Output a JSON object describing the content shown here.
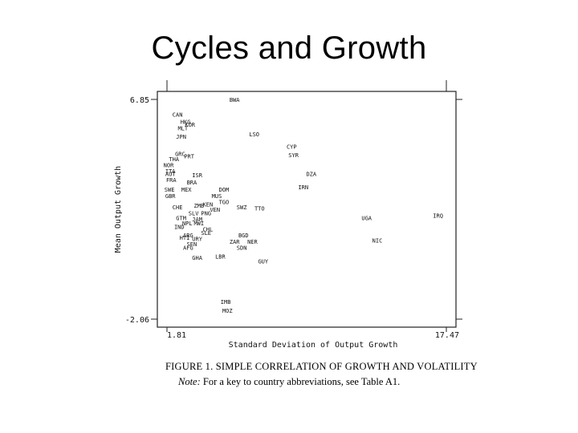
{
  "slide": {
    "title": "Cycles and Growth"
  },
  "caption": {
    "figure": "FIGURE 1. SIMPLE CORRELATION OF GROWTH AND VOLATILITY",
    "note_label": "Note:",
    "note_text": "For a key to country abbreviations, see Table A1."
  },
  "chart_data": {
    "type": "scatter",
    "xlabel": "Standard Deviation of Output Growth",
    "ylabel": "Mean Output Growth",
    "xlim": [
      1.81,
      17.47
    ],
    "ylim": [
      -2.06,
      6.85
    ],
    "x_ticks": [
      "1.81",
      "17.47"
    ],
    "y_ticks": [
      "6.85",
      "-2.06"
    ],
    "grid": false,
    "points": [
      {
        "label": "BWA",
        "x": 5.6,
        "y": 6.85
      },
      {
        "label": "CAN",
        "x": 2.4,
        "y": 6.25
      },
      {
        "label": "HKG",
        "x": 2.85,
        "y": 5.95
      },
      {
        "label": "KOR",
        "x": 3.1,
        "y": 5.85
      },
      {
        "label": "MLT",
        "x": 2.7,
        "y": 5.7
      },
      {
        "label": "JPN",
        "x": 2.6,
        "y": 5.35
      },
      {
        "label": "LSO",
        "x": 6.7,
        "y": 5.45
      },
      {
        "label": "CYP",
        "x": 8.8,
        "y": 4.95
      },
      {
        "label": "SYR",
        "x": 8.9,
        "y": 4.6
      },
      {
        "label": "GRC",
        "x": 2.55,
        "y": 4.65
      },
      {
        "label": "PRT",
        "x": 3.05,
        "y": 4.55
      },
      {
        "label": "NOR",
        "x": 1.9,
        "y": 4.2
      },
      {
        "label": "THA",
        "x": 2.2,
        "y": 4.45
      },
      {
        "label": "ITA",
        "x": 2.0,
        "y": 3.95
      },
      {
        "label": "AUT",
        "x": 2.0,
        "y": 3.85
      },
      {
        "label": "FRA",
        "x": 2.05,
        "y": 3.6
      },
      {
        "label": "ISR",
        "x": 3.5,
        "y": 3.8
      },
      {
        "label": "BRA",
        "x": 3.2,
        "y": 3.5
      },
      {
        "label": "SWE",
        "x": 1.95,
        "y": 3.2
      },
      {
        "label": "GBR",
        "x": 2.0,
        "y": 2.95
      },
      {
        "label": "MEX",
        "x": 2.9,
        "y": 3.2
      },
      {
        "label": "DZA",
        "x": 9.9,
        "y": 3.85
      },
      {
        "label": "IRN",
        "x": 9.45,
        "y": 3.3
      },
      {
        "label": "DOM",
        "x": 5.0,
        "y": 3.2
      },
      {
        "label": "MUS",
        "x": 4.6,
        "y": 2.95
      },
      {
        "label": "TGO",
        "x": 5.0,
        "y": 2.7
      },
      {
        "label": "CHE",
        "x": 2.4,
        "y": 2.5
      },
      {
        "label": "ZMB",
        "x": 3.6,
        "y": 2.55
      },
      {
        "label": "KEN",
        "x": 4.1,
        "y": 2.6
      },
      {
        "label": "SWZ",
        "x": 6.0,
        "y": 2.5
      },
      {
        "label": "TTO",
        "x": 7.0,
        "y": 2.45
      },
      {
        "label": "SLV",
        "x": 3.3,
        "y": 2.25
      },
      {
        "label": "PNG",
        "x": 4.0,
        "y": 2.25
      },
      {
        "label": "VEN",
        "x": 4.5,
        "y": 2.4
      },
      {
        "label": "GTM",
        "x": 2.6,
        "y": 2.05
      },
      {
        "label": "JAM",
        "x": 3.5,
        "y": 2.0
      },
      {
        "label": "NPL",
        "x": 2.95,
        "y": 1.85
      },
      {
        "label": "MWI",
        "x": 3.6,
        "y": 1.85
      },
      {
        "label": "IND",
        "x": 2.5,
        "y": 1.7
      },
      {
        "label": "CHL",
        "x": 4.1,
        "y": 1.6
      },
      {
        "label": "SLE",
        "x": 4.0,
        "y": 1.45
      },
      {
        "label": "ARG",
        "x": 3.0,
        "y": 1.35
      },
      {
        "label": "HTI",
        "x": 2.8,
        "y": 1.25
      },
      {
        "label": "URY",
        "x": 3.5,
        "y": 1.2
      },
      {
        "label": "BGD",
        "x": 6.1,
        "y": 1.35
      },
      {
        "label": "ZAR",
        "x": 5.6,
        "y": 1.1
      },
      {
        "label": "NER",
        "x": 6.6,
        "y": 1.1
      },
      {
        "label": "SEN",
        "x": 3.2,
        "y": 1.0
      },
      {
        "label": "AFG",
        "x": 3.0,
        "y": 0.85
      },
      {
        "label": "SDN",
        "x": 6.0,
        "y": 0.85
      },
      {
        "label": "UGA",
        "x": 13.0,
        "y": 2.05
      },
      {
        "label": "IRQ",
        "x": 17.0,
        "y": 2.15
      },
      {
        "label": "NIC",
        "x": 13.6,
        "y": 1.15
      },
      {
        "label": "GHA",
        "x": 3.5,
        "y": 0.45
      },
      {
        "label": "LBR",
        "x": 4.8,
        "y": 0.5
      },
      {
        "label": "GUY",
        "x": 7.2,
        "y": 0.3
      },
      {
        "label": "IMB",
        "x": 5.1,
        "y": -1.35
      },
      {
        "label": "MOZ",
        "x": 5.2,
        "y": -1.7
      }
    ]
  }
}
